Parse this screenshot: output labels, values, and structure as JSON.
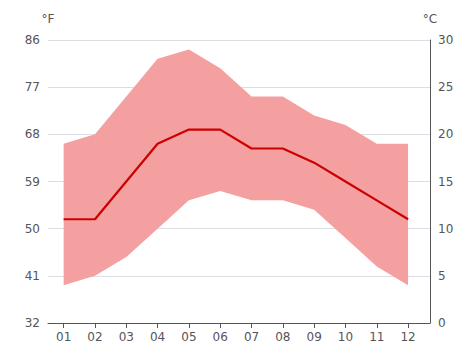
{
  "chart_data": {
    "type": "line",
    "x": [
      1,
      2,
      3,
      4,
      5,
      6,
      7,
      8,
      9,
      10,
      11,
      12
    ],
    "series": [
      {
        "type": "band",
        "color": "#f4a0a0",
        "low": [
          4.0,
          5.0,
          7.0,
          10.0,
          13.0,
          14.0,
          13.0,
          13.0,
          12.0,
          9.0,
          6.0,
          4.0
        ],
        "high": [
          19.0,
          20.0,
          24.0,
          28.0,
          29.0,
          27.0,
          24.0,
          24.0,
          22.0,
          21.0,
          19.0,
          19.0
        ]
      },
      {
        "type": "line",
        "color": "#cc0000",
        "values": [
          11.0,
          11.0,
          15.0,
          19.0,
          20.5,
          20.5,
          18.5,
          18.5,
          17.0,
          15.0,
          13.0,
          11.0
        ]
      }
    ],
    "xlim": [
      0.5,
      12.7
    ],
    "xticks": [
      {
        "value": 1,
        "label": "01"
      },
      {
        "value": 2,
        "label": "02"
      },
      {
        "value": 3,
        "label": "03"
      },
      {
        "value": 4,
        "label": "04"
      },
      {
        "value": 5,
        "label": "05"
      },
      {
        "value": 6,
        "label": "06"
      },
      {
        "value": 7,
        "label": "07"
      },
      {
        "value": 8,
        "label": "08"
      },
      {
        "value": 9,
        "label": "09"
      },
      {
        "value": 10,
        "label": "10"
      },
      {
        "value": 11,
        "label": "11"
      },
      {
        "value": 12,
        "label": "12"
      }
    ],
    "ylabel": "°C",
    "ylim": [
      0,
      30
    ],
    "yticks": [
      0,
      5,
      10,
      15,
      20,
      25,
      30
    ],
    "y2label": "°F",
    "y2lim": [
      32,
      86
    ],
    "y2ticks": [
      32,
      41,
      50,
      59,
      68,
      77,
      86
    ],
    "grid": true
  }
}
